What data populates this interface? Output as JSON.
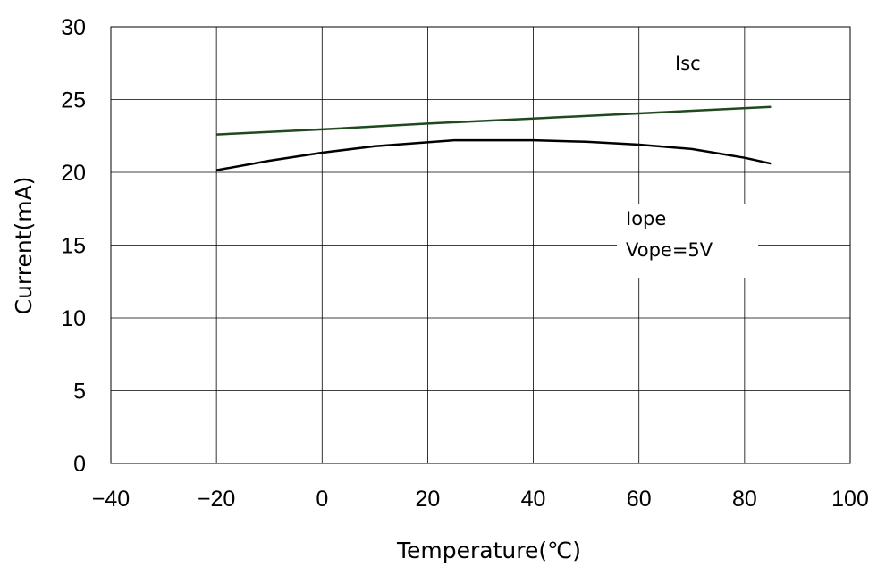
{
  "chart_data": {
    "type": "line",
    "title": "",
    "xlabel": "Temperature(℃)",
    "ylabel": "Current(mA)",
    "xlim": [
      -40,
      100
    ],
    "ylim": [
      0,
      30
    ],
    "xticks": [
      -40,
      -20,
      0,
      20,
      40,
      60,
      80,
      100
    ],
    "yticks": [
      0,
      5,
      10,
      15,
      20,
      25,
      30
    ],
    "xtick_labels": [
      "−40",
      "−20",
      "0",
      "20",
      "40",
      "60",
      "80",
      "100"
    ],
    "ytick_labels": [
      "0",
      "5",
      "10",
      "15",
      "20",
      "25",
      "30"
    ],
    "grid": true,
    "legend": "none",
    "series": [
      {
        "name": "Isc",
        "color": "#1f4a1f",
        "points": [
          [
            -20,
            22.6
          ],
          [
            0,
            22.95
          ],
          [
            20,
            23.35
          ],
          [
            40,
            23.7
          ],
          [
            60,
            24.05
          ],
          [
            85,
            24.5
          ]
        ]
      },
      {
        "name": "Iope",
        "color": "#000000",
        "points": [
          [
            -20,
            20.15
          ],
          [
            -10,
            20.8
          ],
          [
            0,
            21.35
          ],
          [
            10,
            21.8
          ],
          [
            25,
            22.2
          ],
          [
            40,
            22.2
          ],
          [
            50,
            22.1
          ],
          [
            60,
            21.9
          ],
          [
            70,
            21.6
          ],
          [
            80,
            21.0
          ],
          [
            85,
            20.6
          ]
        ]
      }
    ],
    "annotations": [
      {
        "key": "isc",
        "text": "Isc"
      },
      {
        "key": "iope",
        "text": "Iope"
      },
      {
        "key": "vope",
        "text": "Vope=5V"
      }
    ]
  }
}
